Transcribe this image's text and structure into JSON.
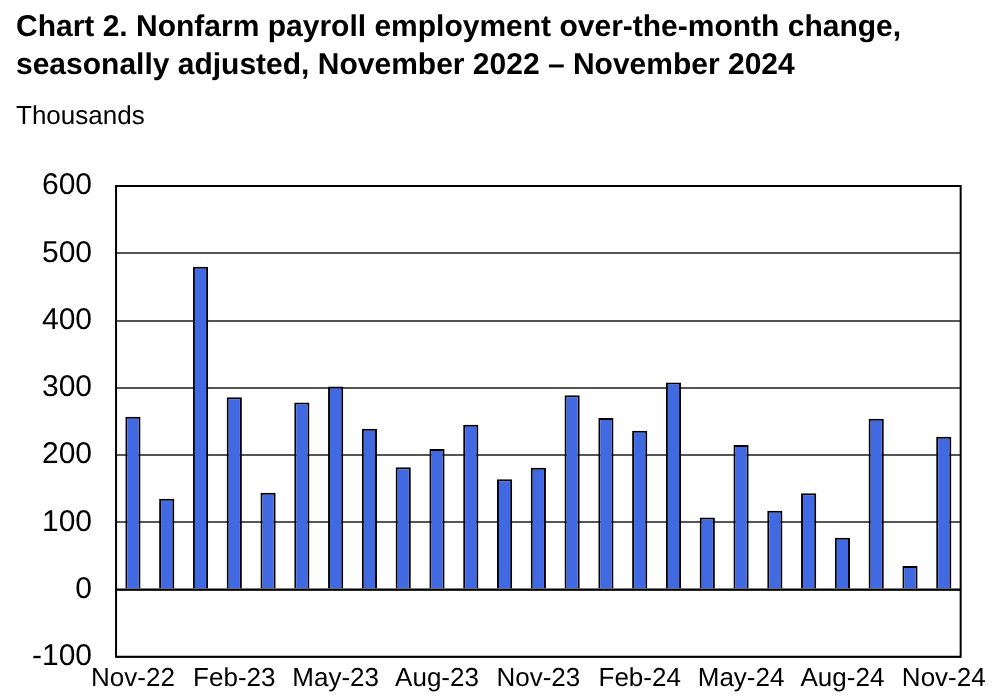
{
  "chart_data": {
    "type": "bar",
    "title": "Chart 2. Nonfarm payroll employment over-the-month change, seasonally adjusted, November 2022 – November 2024",
    "ylabel": "Thousands",
    "categories": [
      "Nov-22",
      null,
      null,
      "Feb-23",
      null,
      null,
      "May-23",
      null,
      null,
      "Aug-23",
      null,
      null,
      "Nov-23",
      null,
      null,
      "Feb-24",
      null,
      null,
      "May-24",
      null,
      null,
      "Aug-24",
      null,
      null,
      "Nov-24"
    ],
    "values": [
      257,
      135,
      480,
      286,
      144,
      278,
      302,
      239,
      182,
      209,
      245,
      164,
      181,
      289,
      255,
      236,
      308,
      107,
      215,
      117,
      143,
      77,
      254,
      35,
      227
    ],
    "color": "#4169e1",
    "ylim": [
      -100,
      600
    ],
    "yticks": [
      -100,
      0,
      100,
      200,
      300,
      400,
      500,
      600
    ],
    "grid": "y",
    "legend": false
  }
}
